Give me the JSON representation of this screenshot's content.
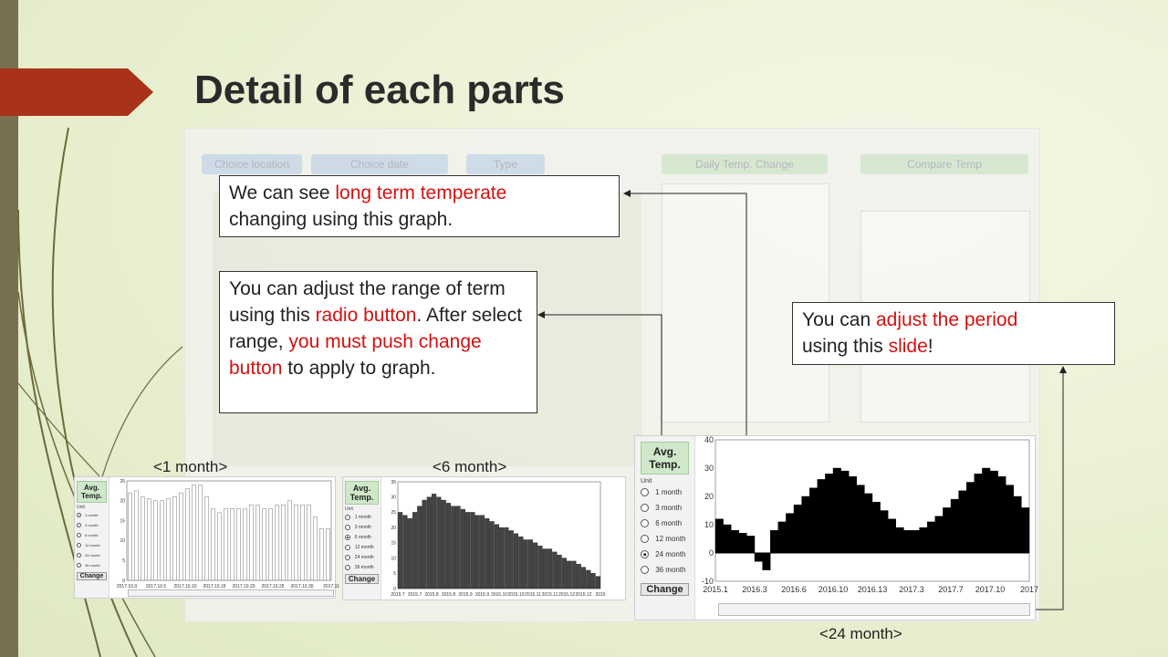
{
  "slide": {
    "title": "Detail of each parts",
    "colors": {
      "accent": "#a8321a",
      "sidebar": "#78704f",
      "highlight": "#d61010"
    }
  },
  "callouts": {
    "graph": {
      "t1": "We can see ",
      "r1": "long term temperate",
      "t2": "changing using this graph."
    },
    "radio": {
      "t1": "You can adjust the range of term using this ",
      "r1": "radio button",
      "t2": ". After select range, ",
      "r2": "you must push change button",
      "t3": " to apply to graph."
    },
    "slide": {
      "t1": "You can ",
      "r1": "adjust the period",
      "t2": " using this ",
      "r2": "slide",
      "t3": "!"
    }
  },
  "background_screenshot": {
    "headers": [
      "Choice location",
      "Choice date",
      "Type",
      "Daily Temp. Change",
      "Compare Temp"
    ]
  },
  "panels": {
    "one_month": {
      "caption": "<1 month>",
      "avg_label": "Avg. Temp.",
      "unit_label": "Unit",
      "options": [
        "1 month",
        "3 month",
        "6 month",
        "12 month",
        "24 month",
        "36 month"
      ],
      "selected": "1 month",
      "change_label": "Change",
      "chart_data": {
        "type": "bar",
        "y_ticks": [
          "0",
          "5",
          "10",
          "15",
          "20",
          "25"
        ],
        "ylim": [
          0,
          25
        ],
        "x_ticks": [
          "2017.10.0",
          "2017.10.5",
          "2017.10.10",
          "2017.10.15",
          "2017.10.20",
          "2017.10.25",
          "2017.10.30",
          "2017.11"
        ],
        "values": [
          22,
          22.5,
          21,
          20.5,
          20,
          20,
          20.5,
          21,
          22,
          23,
          24,
          24,
          21,
          18,
          17,
          18,
          18,
          18,
          18,
          19,
          19,
          18,
          18,
          19,
          19,
          20,
          19,
          19,
          19,
          16,
          13,
          13
        ]
      }
    },
    "six_month": {
      "caption": "<6 month>",
      "avg_label": "Avg. Temp.",
      "unit_label": "Unit",
      "options": [
        "1 month",
        "3 month",
        "6 month",
        "12 month",
        "24 month",
        "36 month"
      ],
      "selected": "6 month",
      "change_label": "Change",
      "chart_data": {
        "type": "bar",
        "y_ticks": [
          "0",
          "5",
          "10",
          "15",
          "20",
          "25",
          "30",
          "35"
        ],
        "ylim": [
          0,
          35
        ],
        "x_ticks": [
          "2015.7",
          "2015.7",
          "2015.8",
          "2015.8",
          "2015.9",
          "2015.9",
          "2015.10",
          "2015.10",
          "2015.11",
          "2015.11",
          "2015.12",
          "2015.12",
          "2015"
        ],
        "values": [
          25,
          24,
          23,
          25,
          27,
          29,
          30,
          31,
          30,
          29,
          28,
          27,
          27,
          26,
          25,
          25,
          24,
          24,
          23,
          22,
          21,
          20,
          20,
          19,
          18,
          17,
          16,
          16,
          15,
          14,
          13,
          13,
          12,
          11,
          10,
          9,
          9,
          8,
          7,
          6,
          5,
          4
        ]
      }
    },
    "twenty_four_month": {
      "caption": "<24 month>",
      "avg_label": "Avg. Temp.",
      "unit_label": "Unit",
      "options": [
        "1 month",
        "3 month",
        "6 month",
        "12 month",
        "24 month",
        "36 month"
      ],
      "selected": "24 month",
      "change_label": "Change",
      "chart_data": {
        "type": "bar",
        "y_ticks": [
          "-10",
          "0",
          "10",
          "20",
          "30",
          "40"
        ],
        "ylim": [
          -10,
          40
        ],
        "x_ticks": [
          "2015.1",
          "2016.3",
          "2016.6",
          "2016.10",
          "2016.13",
          "2017.3",
          "2017.7",
          "2017.10",
          "2017"
        ],
        "values": [
          12,
          10,
          8,
          7,
          6,
          -3,
          -6,
          8,
          11,
          14,
          17,
          20,
          23,
          26,
          28,
          30,
          29,
          27,
          24,
          21,
          18,
          15,
          12,
          9,
          8,
          8,
          9,
          11,
          13,
          16,
          19,
          22,
          25,
          28,
          30,
          29,
          27,
          24,
          20,
          16
        ]
      }
    }
  }
}
